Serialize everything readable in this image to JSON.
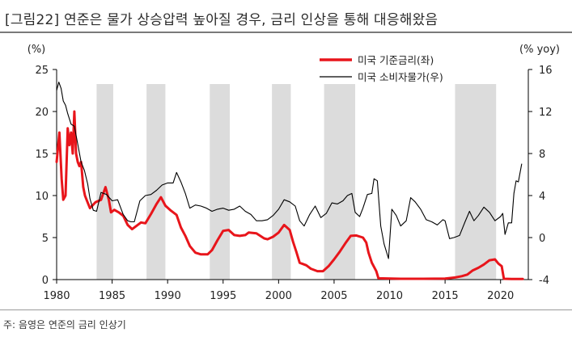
{
  "page": {
    "title": "[그림22]  연준은 물가 상승압력 높아질 경우, 금리 인상을 통해 대응해왔음",
    "source": "주: 음영은 연준의 금리 인상기"
  },
  "colors": {
    "rate_line": "#e8151b",
    "cpi_line": "#000000",
    "shading": "#dcdcdc"
  },
  "chart_data": {
    "type": "line",
    "left_unit": "(%)",
    "right_unit": "(% yoy)",
    "xlim": [
      1980,
      2022.5
    ],
    "left_ylim": [
      0,
      25
    ],
    "right_ylim": [
      -4,
      16
    ],
    "x_ticks": [
      1980,
      1985,
      1990,
      1995,
      2000,
      2005,
      2010,
      2015,
      2020
    ],
    "left_ticks": [
      0,
      5,
      10,
      15,
      20,
      25
    ],
    "right_ticks": [
      -4,
      0,
      4,
      8,
      12,
      16
    ],
    "legend": {
      "placement": "top-right"
    },
    "shaded_periods": [
      [
        1983.6,
        1985.1
      ],
      [
        1988.1,
        1989.8
      ],
      [
        1993.8,
        1995.6
      ],
      [
        1999.4,
        2001.1
      ],
      [
        2004.1,
        2006.9
      ],
      [
        2015.9,
        2019.6
      ]
    ],
    "series": [
      {
        "name": "미국 기준금리(좌)",
        "axis": "left",
        "x": [
          1980.0,
          1980.25,
          1980.45,
          1980.6,
          1980.8,
          1981.0,
          1981.15,
          1981.3,
          1981.45,
          1981.6,
          1981.75,
          1981.9,
          1982.05,
          1982.2,
          1982.4,
          1982.55,
          1982.7,
          1982.85,
          1983.0,
          1983.5,
          1984.0,
          1984.4,
          1984.7,
          1984.9,
          1985.2,
          1985.6,
          1986.0,
          1986.4,
          1986.8,
          1987.2,
          1987.6,
          1988.0,
          1988.5,
          1989.0,
          1989.4,
          1989.8,
          1990.3,
          1990.8,
          1991.2,
          1991.6,
          1992.0,
          1992.5,
          1993.0,
          1993.6,
          1994.0,
          1994.5,
          1995.0,
          1995.5,
          1996.0,
          1996.5,
          1997.0,
          1997.3,
          1998.0,
          1998.7,
          1999.0,
          1999.5,
          2000.0,
          2000.5,
          2001.0,
          2001.3,
          2001.6,
          2001.9,
          2002.5,
          2002.9,
          2003.5,
          2004.0,
          2004.5,
          2005.0,
          2005.5,
          2006.0,
          2006.5,
          2007.0,
          2007.6,
          2007.9,
          2008.1,
          2008.4,
          2008.8,
          2009.0,
          2011.0,
          2013.0,
          2015.0,
          2015.9,
          2016.5,
          2017.0,
          2017.5,
          2018.0,
          2018.5,
          2019.0,
          2019.5,
          2019.8,
          2020.1,
          2020.3,
          2021.0,
          2022.0
        ],
        "values": [
          14.0,
          17.5,
          12.0,
          9.5,
          10.0,
          18.0,
          16.0,
          17.5,
          15.0,
          20.0,
          15.0,
          14.0,
          13.5,
          14.0,
          11.0,
          10.0,
          9.5,
          9.0,
          8.5,
          9.2,
          9.5,
          11.0,
          9.5,
          8.0,
          8.3,
          8.0,
          7.6,
          6.5,
          6.0,
          6.4,
          6.8,
          6.7,
          7.8,
          9.0,
          9.8,
          8.8,
          8.2,
          7.7,
          6.2,
          5.2,
          4.0,
          3.2,
          3.0,
          3.0,
          3.5,
          4.7,
          5.8,
          5.9,
          5.3,
          5.2,
          5.3,
          5.6,
          5.5,
          4.9,
          4.8,
          5.1,
          5.6,
          6.5,
          5.9,
          4.5,
          3.3,
          2.0,
          1.7,
          1.3,
          1.0,
          1.0,
          1.6,
          2.4,
          3.3,
          4.3,
          5.2,
          5.25,
          5.0,
          4.4,
          3.2,
          2.0,
          1.0,
          0.15,
          0.1,
          0.1,
          0.12,
          0.25,
          0.4,
          0.6,
          1.1,
          1.4,
          1.8,
          2.3,
          2.4,
          1.9,
          1.6,
          0.1,
          0.08,
          0.08
        ]
      },
      {
        "name": "미국 소비자물가(우)",
        "axis": "right",
        "x": [
          1980.0,
          1980.2,
          1980.4,
          1980.6,
          1980.8,
          1981.0,
          1981.3,
          1981.6,
          1981.9,
          1982.2,
          1982.5,
          1982.8,
          1983.0,
          1983.3,
          1983.6,
          1984.0,
          1984.5,
          1985.0,
          1985.5,
          1986.0,
          1986.4,
          1986.7,
          1987.0,
          1987.5,
          1988.0,
          1988.5,
          1989.0,
          1989.5,
          1990.0,
          1990.5,
          1990.8,
          1991.2,
          1991.6,
          1992.0,
          1992.5,
          1993.0,
          1993.5,
          1994.0,
          1994.5,
          1995.0,
          1995.5,
          1996.0,
          1996.5,
          1997.0,
          1997.5,
          1998.0,
          1998.5,
          1999.0,
          1999.5,
          2000.0,
          2000.5,
          2001.0,
          2001.5,
          2001.9,
          2002.3,
          2002.8,
          2003.3,
          2003.8,
          2004.3,
          2004.8,
          2005.3,
          2005.8,
          2006.2,
          2006.6,
          2006.9,
          2007.3,
          2007.6,
          2008.0,
          2008.4,
          2008.6,
          2008.9,
          2009.2,
          2009.5,
          2009.9,
          2010.2,
          2010.6,
          2011.0,
          2011.5,
          2011.9,
          2012.3,
          2012.8,
          2013.3,
          2013.8,
          2014.3,
          2014.8,
          2015.0,
          2015.4,
          2015.8,
          2016.3,
          2016.8,
          2017.2,
          2017.6,
          2018.0,
          2018.5,
          2019.0,
          2019.5,
          2020.0,
          2020.2,
          2020.4,
          2020.7,
          2021.0,
          2021.2,
          2021.4,
          2021.6,
          2021.9
        ],
        "values": [
          14.0,
          14.8,
          14.2,
          13.0,
          12.6,
          11.8,
          10.8,
          10.6,
          8.9,
          7.2,
          6.4,
          5.1,
          3.7,
          2.6,
          2.5,
          4.3,
          4.1,
          3.5,
          3.6,
          2.2,
          1.6,
          1.5,
          1.5,
          3.5,
          4.0,
          4.1,
          4.5,
          5.0,
          5.2,
          5.2,
          6.2,
          5.3,
          4.2,
          2.8,
          3.1,
          3.0,
          2.8,
          2.5,
          2.7,
          2.8,
          2.6,
          2.7,
          3.0,
          2.5,
          2.2,
          1.6,
          1.6,
          1.7,
          2.1,
          2.7,
          3.6,
          3.4,
          3.0,
          1.6,
          1.1,
          2.2,
          3.0,
          1.9,
          2.3,
          3.3,
          3.2,
          3.5,
          4.0,
          4.2,
          2.4,
          2.0,
          2.8,
          4.1,
          4.2,
          5.6,
          5.4,
          1.1,
          -0.6,
          -2.0,
          2.7,
          2.1,
          1.1,
          1.6,
          3.8,
          3.4,
          2.7,
          1.7,
          1.5,
          1.2,
          1.7,
          1.6,
          -0.1,
          0.0,
          0.2,
          1.5,
          2.5,
          1.6,
          2.1,
          2.9,
          2.4,
          1.6,
          2.0,
          2.3,
          0.3,
          1.4,
          1.4,
          4.2,
          5.4,
          5.3,
          7.0
        ]
      }
    ]
  }
}
